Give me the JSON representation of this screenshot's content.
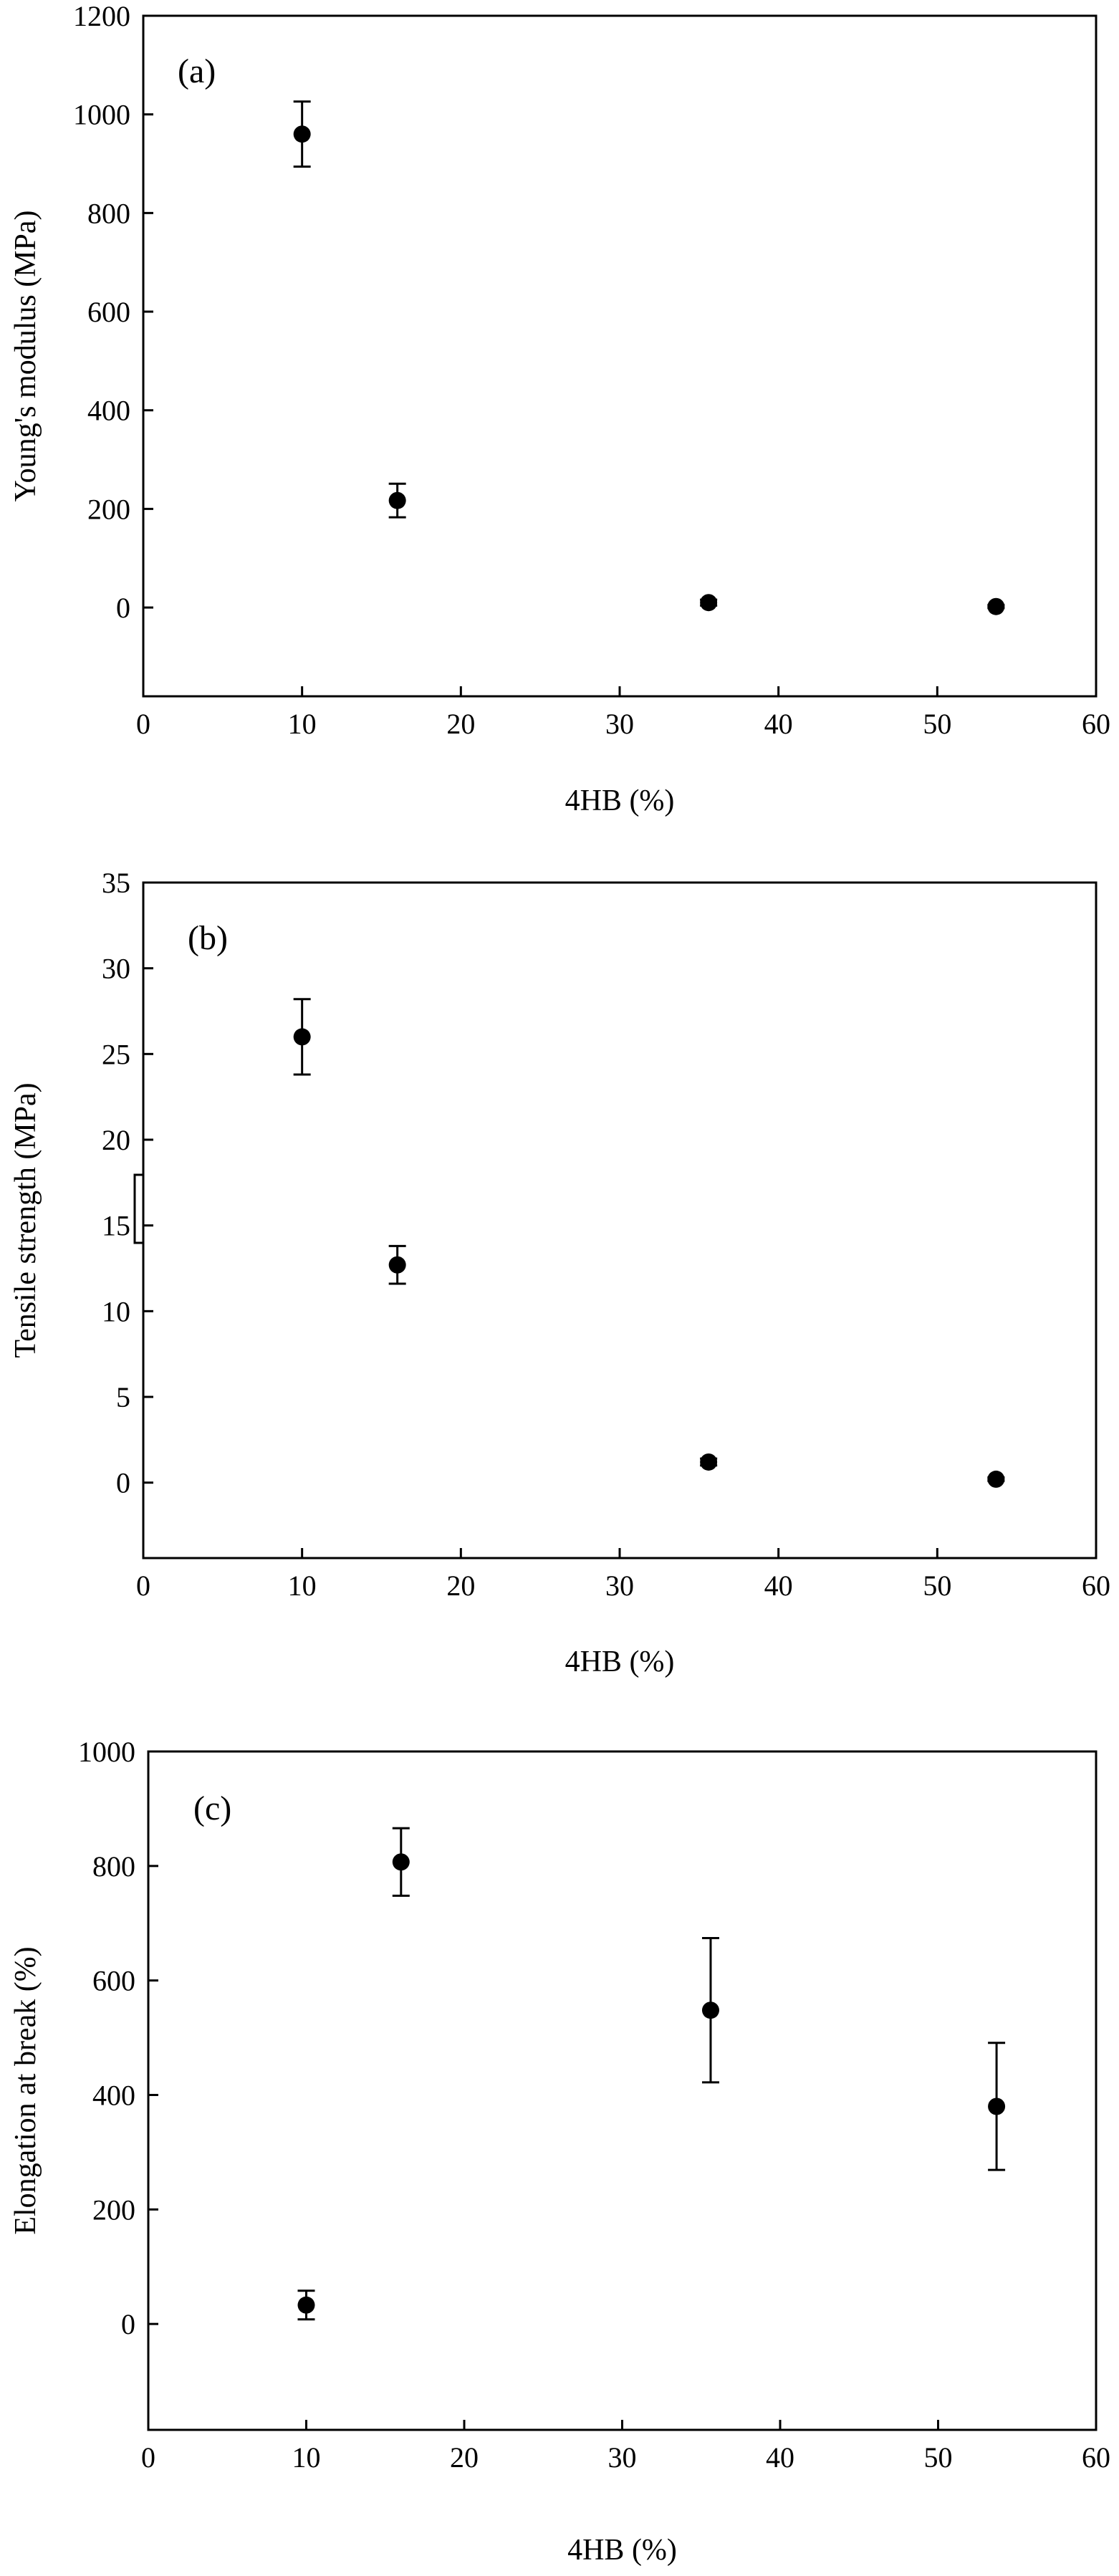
{
  "chart_data": [
    {
      "type": "scatter",
      "panel_label": "(a)",
      "xlabel": "4HB (%)",
      "ylabel": "Young's modulus (MPa)",
      "xlim": [
        0,
        60
      ],
      "ylim": [
        -180,
        1200
      ],
      "xticks": [
        0,
        10,
        20,
        30,
        40,
        50,
        60
      ],
      "yticks": [
        0,
        200,
        400,
        600,
        800,
        1000,
        1200
      ],
      "grid": false,
      "points": [
        {
          "x": 10,
          "y": 960,
          "err": 66
        },
        {
          "x": 16,
          "y": 217,
          "err": 34
        },
        {
          "x": 35.6,
          "y": 10,
          "err": 6
        },
        {
          "x": 53.7,
          "y": 2,
          "err": 3
        }
      ]
    },
    {
      "type": "scatter",
      "panel_label": "(b)",
      "xlabel": "4HB (%)",
      "ylabel": "Tensile strength (MPa)",
      "xlim": [
        0,
        60
      ],
      "ylim": [
        -4.4,
        35
      ],
      "xticks": [
        0,
        10,
        20,
        30,
        40,
        50,
        60
      ],
      "yticks": [
        0,
        5,
        10,
        15,
        20,
        25,
        30,
        35
      ],
      "grid": false,
      "points": [
        {
          "x": 10,
          "y": 26,
          "err": 2.2
        },
        {
          "x": 16,
          "y": 12.7,
          "err": 1.1
        },
        {
          "x": 35.6,
          "y": 1.2,
          "err": 0.2
        },
        {
          "x": 53.7,
          "y": 0.2,
          "err": 0.1
        }
      ]
    },
    {
      "type": "scatter",
      "panel_label": "(c)",
      "xlabel": "4HB (%)",
      "ylabel": "Elongation at break (%)",
      "xlim": [
        0,
        60
      ],
      "ylim": [
        -185,
        1000
      ],
      "xticks": [
        0,
        10,
        20,
        30,
        40,
        50,
        60
      ],
      "yticks": [
        0,
        200,
        400,
        600,
        800,
        1000
      ],
      "grid": false,
      "points": [
        {
          "x": 10,
          "y": 33,
          "err": 25
        },
        {
          "x": 16,
          "y": 807,
          "err": 59
        },
        {
          "x": 35.6,
          "y": 548,
          "err": 126
        },
        {
          "x": 53.7,
          "y": 380,
          "err": 111
        }
      ]
    }
  ],
  "colors": {
    "axis": "#000000",
    "marker": "#000000",
    "background": "#ffffff"
  }
}
